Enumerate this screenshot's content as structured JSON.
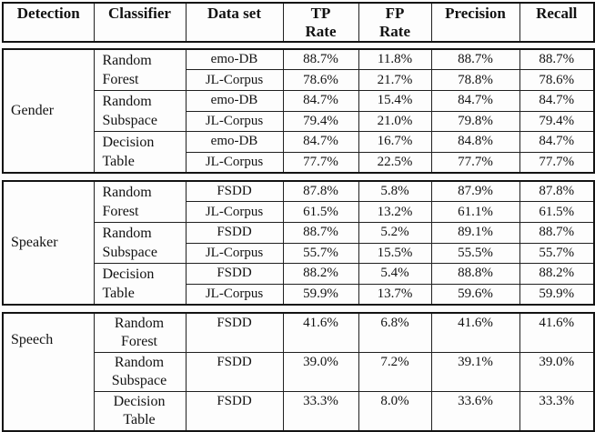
{
  "colors": {
    "background": "#fcfcfc",
    "border": "#131313",
    "text": "#121212"
  },
  "header": {
    "columns": [
      {
        "label": "Detection"
      },
      {
        "label": "Classifier"
      },
      {
        "label": "Data set"
      },
      {
        "label": "TP\nRate"
      },
      {
        "label": "FP\nRate"
      },
      {
        "label": "Precision"
      },
      {
        "label": "Recall"
      }
    ]
  },
  "sections": [
    {
      "detection": "Gender",
      "groups": [
        {
          "classifier": "Random\nForest",
          "rows": [
            {
              "dataset": "emo-DB",
              "tp_rate": "88.7%",
              "fp_rate": "11.8%",
              "precision": "88.7%",
              "recall": "88.7%"
            },
            {
              "dataset": "JL-Corpus",
              "tp_rate": "78.6%",
              "fp_rate": "21.7%",
              "precision": "78.8%",
              "recall": "78.6%"
            }
          ]
        },
        {
          "classifier": "Random\nSubspace",
          "rows": [
            {
              "dataset": "emo-DB",
              "tp_rate": "84.7%",
              "fp_rate": "15.4%",
              "precision": "84.7%",
              "recall": "84.7%"
            },
            {
              "dataset": "JL-Corpus",
              "tp_rate": "79.4%",
              "fp_rate": "21.0%",
              "precision": "79.8%",
              "recall": "79.4%"
            }
          ]
        },
        {
          "classifier": "Decision\nTable",
          "rows": [
            {
              "dataset": "emo-DB",
              "tp_rate": "84.7%",
              "fp_rate": "16.7%",
              "precision": "84.8%",
              "recall": "84.7%"
            },
            {
              "dataset": "JL-Corpus",
              "tp_rate": "77.7%",
              "fp_rate": "22.5%",
              "precision": "77.7%",
              "recall": "77.7%"
            }
          ]
        }
      ]
    },
    {
      "detection": "Speaker",
      "groups": [
        {
          "classifier": "Random\nForest",
          "rows": [
            {
              "dataset": "FSDD",
              "tp_rate": "87.8%",
              "fp_rate": "5.8%",
              "precision": "87.9%",
              "recall": "87.8%"
            },
            {
              "dataset": "JL-Corpus",
              "tp_rate": "61.5%",
              "fp_rate": "13.2%",
              "precision": "61.1%",
              "recall": "61.5%"
            }
          ]
        },
        {
          "classifier": "Random\nSubspace",
          "rows": [
            {
              "dataset": "FSDD",
              "tp_rate": "88.7%",
              "fp_rate": "5.2%",
              "precision": "89.1%",
              "recall": "88.7%"
            },
            {
              "dataset": "JL-Corpus",
              "tp_rate": "55.7%",
              "fp_rate": "15.5%",
              "precision": "55.5%",
              "recall": "55.7%"
            }
          ]
        },
        {
          "classifier": "Decision\nTable",
          "rows": [
            {
              "dataset": "FSDD",
              "tp_rate": "88.2%",
              "fp_rate": "5.4%",
              "precision": "88.8%",
              "recall": "88.2%"
            },
            {
              "dataset": "JL-Corpus",
              "tp_rate": "59.9%",
              "fp_rate": "13.7%",
              "precision": "59.6%",
              "recall": "59.9%"
            }
          ]
        }
      ]
    },
    {
      "detection": "Speech",
      "groups": [
        {
          "classifier": "Random\nForest",
          "rows": [
            {
              "dataset": "FSDD",
              "tp_rate": "41.6%",
              "fp_rate": "6.8%",
              "precision": "41.6%",
              "recall": "41.6%"
            }
          ]
        },
        {
          "classifier": "Random\nSubspace",
          "rows": [
            {
              "dataset": "FSDD",
              "tp_rate": "39.0%",
              "fp_rate": "7.2%",
              "precision": "39.1%",
              "recall": "39.0%"
            }
          ]
        },
        {
          "classifier": "Decision\nTable",
          "rows": [
            {
              "dataset": "FSDD",
              "tp_rate": "33.3%",
              "fp_rate": "8.0%",
              "precision": "33.6%",
              "recall": "33.3%"
            }
          ]
        }
      ]
    }
  ]
}
